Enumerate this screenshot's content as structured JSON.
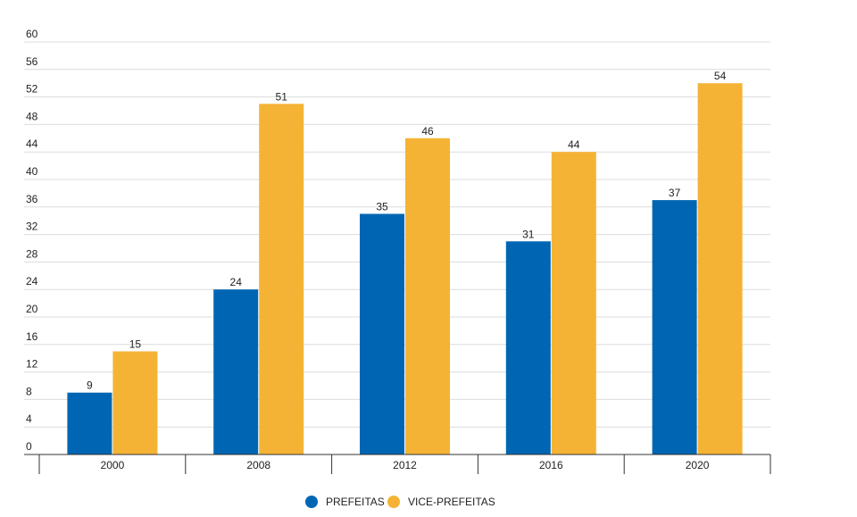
{
  "chart_data": {
    "type": "bar",
    "title": "",
    "xlabel": "",
    "ylabel": "",
    "categories": [
      "2000",
      "2008",
      "2012",
      "2016",
      "2020"
    ],
    "series": [
      {
        "name": "PREFEITAS",
        "color": "#0066b3",
        "values": [
          9,
          24,
          35,
          31,
          37
        ]
      },
      {
        "name": "VICE-PREFEITAS",
        "color": "#f5b335",
        "values": [
          15,
          51,
          46,
          44,
          54
        ]
      }
    ],
    "ylim": [
      0,
      60
    ],
    "yticks": [
      0,
      4,
      8,
      12,
      16,
      20,
      24,
      28,
      32,
      36,
      40,
      44,
      48,
      52,
      56,
      60
    ],
    "grid": true,
    "legend_position": "bottom-center",
    "colors": {
      "gridline": "#dcdcdc",
      "axis": "#333333",
      "text": "#222222"
    }
  }
}
